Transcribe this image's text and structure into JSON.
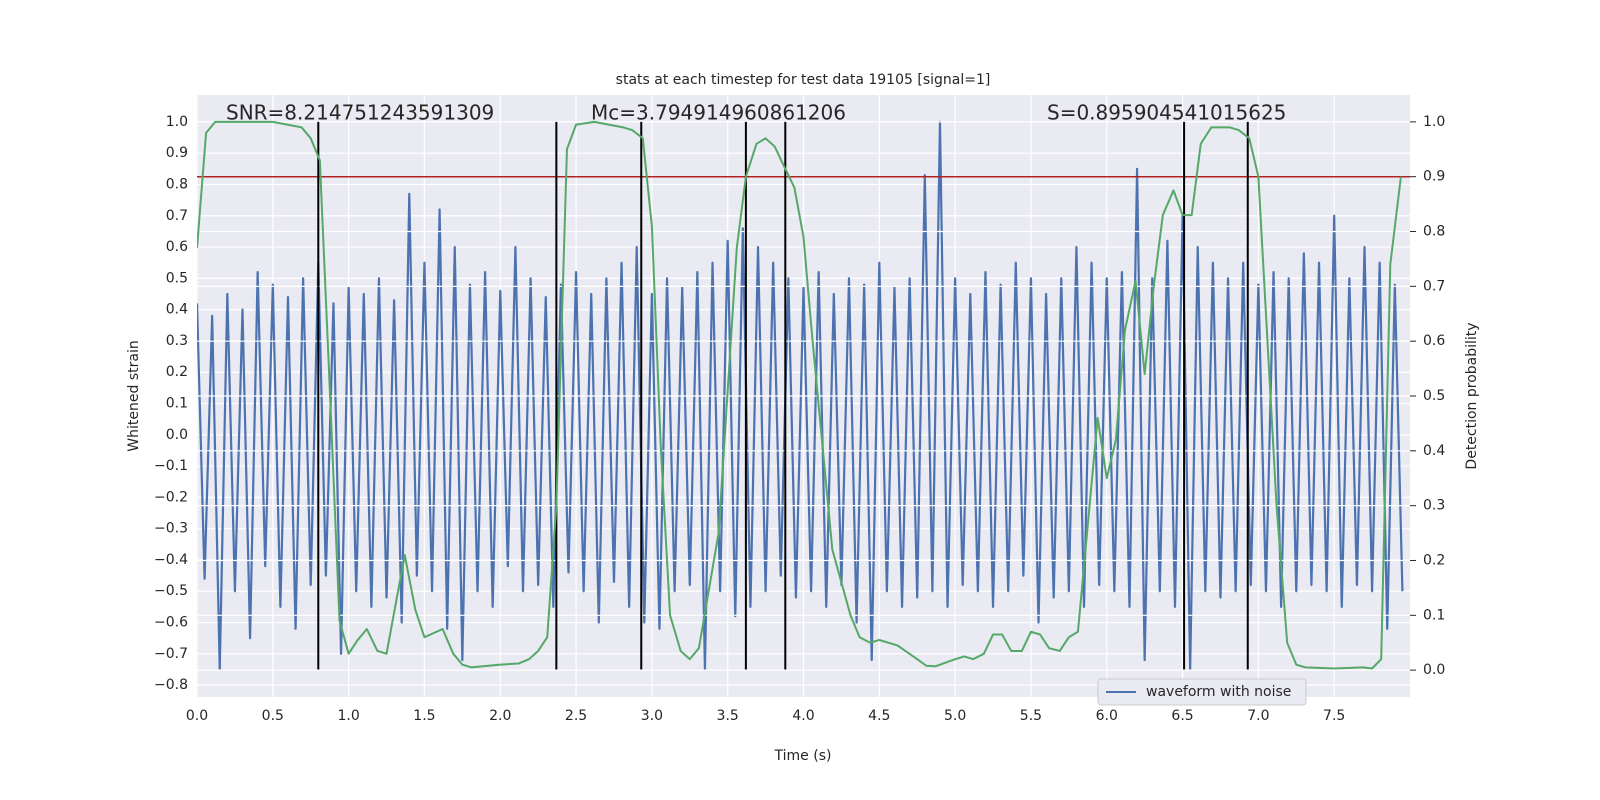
{
  "chart_data": {
    "type": "line",
    "title": "stats at each timestep for test data 19105 [signal=1]",
    "xlabel": "Time (s)",
    "ylabel": "Whitened strain",
    "y2label": "Detection probability",
    "annotations": [
      "SNR=8.214751243591309",
      "Mc=3.794914960861206",
      "S=0.895904541015625"
    ],
    "grid": true,
    "legend": "lower right",
    "xlim": [
      0,
      8
    ],
    "ylim": [
      -0.838,
      1.086
    ],
    "y2lim": [
      -0.049,
      1.049
    ],
    "xticks": [
      {
        "value": 0,
        "label": "0.0"
      },
      {
        "value": 0.5,
        "label": "0.5"
      },
      {
        "value": 1,
        "label": "1.0"
      },
      {
        "value": 1.5,
        "label": "1.5"
      },
      {
        "value": 2,
        "label": "2.0"
      },
      {
        "value": 2.5,
        "label": "2.5"
      },
      {
        "value": 3,
        "label": "3.0"
      },
      {
        "value": 3.5,
        "label": "3.5"
      },
      {
        "value": 4,
        "label": "4.0"
      },
      {
        "value": 4.5,
        "label": "4.5"
      },
      {
        "value": 5,
        "label": "5.0"
      },
      {
        "value": 5.5,
        "label": "5.5"
      },
      {
        "value": 6,
        "label": "6.0"
      },
      {
        "value": 6.5,
        "label": "6.5"
      },
      {
        "value": 7,
        "label": "7.0"
      },
      {
        "value": 7.5,
        "label": "7.5"
      }
    ],
    "yticks": [
      {
        "value": -0.8,
        "label": "−0.8"
      },
      {
        "value": -0.7,
        "label": "−0.7"
      },
      {
        "value": -0.6,
        "label": "−0.6"
      },
      {
        "value": -0.5,
        "label": "−0.5"
      },
      {
        "value": -0.4,
        "label": "−0.4"
      },
      {
        "value": -0.3,
        "label": "−0.3"
      },
      {
        "value": -0.2,
        "label": "−0.2"
      },
      {
        "value": -0.1,
        "label": "−0.1"
      },
      {
        "value": 0,
        "label": "0.0"
      },
      {
        "value": 0.1,
        "label": "0.1"
      },
      {
        "value": 0.2,
        "label": "0.2"
      },
      {
        "value": 0.3,
        "label": "0.3"
      },
      {
        "value": 0.4,
        "label": "0.4"
      },
      {
        "value": 0.5,
        "label": "0.5"
      },
      {
        "value": 0.6,
        "label": "0.6"
      },
      {
        "value": 0.7,
        "label": "0.7"
      },
      {
        "value": 0.8,
        "label": "0.8"
      },
      {
        "value": 0.9,
        "label": "0.9"
      },
      {
        "value": 1,
        "label": "1.0"
      }
    ],
    "y2ticks": [
      {
        "value": 0,
        "label": "0.0"
      },
      {
        "value": 0.1,
        "label": "0.1"
      },
      {
        "value": 0.2,
        "label": "0.2"
      },
      {
        "value": 0.3,
        "label": "0.3"
      },
      {
        "value": 0.4,
        "label": "0.4"
      },
      {
        "value": 0.5,
        "label": "0.5"
      },
      {
        "value": 0.6,
        "label": "0.6"
      },
      {
        "value": 0.7,
        "label": "0.7"
      },
      {
        "value": 0.8,
        "label": "0.8"
      },
      {
        "value": 0.9,
        "label": "0.9"
      },
      {
        "value": 1,
        "label": "1.0"
      }
    ],
    "series": [
      {
        "name": "waveform with noise",
        "color": "#4c72b0",
        "x": [
          0,
          0.05,
          0.1,
          0.15,
          0.2,
          0.25,
          0.3,
          0.35,
          0.4,
          0.45,
          0.5,
          0.55,
          0.6,
          0.65,
          0.7,
          0.75,
          0.8,
          0.85,
          0.9,
          0.95,
          1,
          1.05,
          1.1,
          1.15,
          1.2,
          1.25,
          1.3,
          1.35,
          1.4,
          1.45,
          1.5,
          1.55,
          1.6,
          1.65,
          1.7,
          1.75,
          1.8,
          1.85,
          1.9,
          1.95,
          2,
          2.05,
          2.1,
          2.15,
          2.2,
          2.25,
          2.3,
          2.35,
          2.4,
          2.45,
          2.5,
          2.55,
          2.6,
          2.65,
          2.7,
          2.75,
          2.8,
          2.85,
          2.9,
          2.95,
          3,
          3.05,
          3.1,
          3.15,
          3.2,
          3.25,
          3.3,
          3.35,
          3.4,
          3.45,
          3.5,
          3.55,
          3.6,
          3.65,
          3.7,
          3.75,
          3.8,
          3.85,
          3.9,
          3.95,
          4,
          4.05,
          4.1,
          4.15,
          4.2,
          4.25,
          4.3,
          4.35,
          4.4,
          4.45,
          4.5,
          4.55,
          4.6,
          4.65,
          4.7,
          4.75,
          4.8,
          4.85,
          4.9,
          4.95,
          5,
          5.05,
          5.1,
          5.15,
          5.2,
          5.25,
          5.3,
          5.35,
          5.4,
          5.45,
          5.5,
          5.55,
          5.6,
          5.65,
          5.7,
          5.75,
          5.8,
          5.85,
          5.9,
          5.95,
          6,
          6.05,
          6.1,
          6.15,
          6.2,
          6.25,
          6.3,
          6.35,
          6.4,
          6.45,
          6.5,
          6.55,
          6.6,
          6.65,
          6.7,
          6.75,
          6.8,
          6.85,
          6.9,
          6.95,
          7,
          7.05,
          7.1,
          7.15,
          7.2,
          7.25,
          7.3,
          7.35,
          7.4,
          7.45,
          7.5,
          7.55,
          7.6,
          7.65,
          7.7,
          7.75,
          7.8,
          7.85,
          7.9,
          7.95
        ],
        "values": [
          0.42,
          -0.46,
          0.38,
          -0.75,
          0.45,
          -0.5,
          0.4,
          -0.65,
          0.52,
          -0.42,
          0.48,
          -0.55,
          0.44,
          -0.62,
          0.5,
          -0.48,
          0.55,
          -0.45,
          0.42,
          -0.7,
          0.47,
          -0.5,
          0.45,
          -0.55,
          0.5,
          -0.52,
          0.43,
          -0.6,
          0.77,
          -0.45,
          0.55,
          -0.5,
          0.72,
          -0.62,
          0.6,
          -0.72,
          0.48,
          -0.5,
          0.52,
          -0.55,
          0.46,
          -0.42,
          0.6,
          -0.5,
          0.5,
          -0.48,
          0.44,
          -0.55,
          0.48,
          -0.44,
          0.52,
          -0.5,
          0.45,
          -0.6,
          0.5,
          -0.47,
          0.55,
          -0.55,
          0.6,
          -0.6,
          0.45,
          -0.62,
          0.5,
          -0.5,
          0.47,
          -0.48,
          0.52,
          -0.75,
          0.55,
          -0.5,
          0.62,
          -0.58,
          0.66,
          -0.55,
          0.6,
          -0.5,
          0.55,
          -0.45,
          0.5,
          -0.52,
          0.47,
          -0.5,
          0.52,
          -0.55,
          0.45,
          -0.48,
          0.5,
          -0.6,
          0.48,
          -0.72,
          0.55,
          -0.5,
          0.47,
          -0.55,
          0.5,
          -0.52,
          0.83,
          -0.5,
          1.0,
          -0.55,
          0.5,
          -0.48,
          0.45,
          -0.5,
          0.52,
          -0.55,
          0.48,
          -0.5,
          0.55,
          -0.45,
          0.5,
          -0.6,
          0.45,
          -0.52,
          0.5,
          -0.5,
          0.6,
          -0.55,
          0.55,
          -0.48,
          0.5,
          -0.5,
          0.52,
          -0.55,
          0.85,
          -0.72,
          0.5,
          -0.5,
          0.62,
          -0.55,
          0.7,
          -0.75,
          0.6,
          -0.5,
          0.55,
          -0.52,
          0.5,
          -0.5,
          0.55,
          -0.48,
          0.48,
          -0.5,
          0.52,
          -0.55,
          0.5,
          -0.5,
          0.58,
          -0.48,
          0.55,
          -0.5,
          0.7,
          -0.55,
          0.5,
          -0.48,
          0.6,
          -0.5,
          0.55,
          -0.62,
          0.48,
          -0.5
        ]
      }
    ],
    "probability": {
      "color": "#55a868",
      "axis": "y2",
      "x": [
        0,
        0.06,
        0.12,
        0.5,
        0.69,
        0.75,
        0.81,
        0.87,
        0.94,
        1,
        1.06,
        1.12,
        1.19,
        1.25,
        1.31,
        1.37,
        1.44,
        1.5,
        1.62,
        1.69,
        1.75,
        1.81,
        2,
        2.12,
        2.19,
        2.25,
        2.31,
        2.37,
        2.44,
        2.5,
        2.62,
        2.81,
        2.87,
        2.94,
        3,
        3.06,
        3.12,
        3.19,
        3.25,
        3.31,
        3.44,
        3.56,
        3.62,
        3.69,
        3.75,
        3.81,
        3.87,
        3.94,
        4,
        4.06,
        4.19,
        4.31,
        4.37,
        4.44,
        4.5,
        4.62,
        4.75,
        4.81,
        4.87,
        5,
        5.06,
        5.12,
        5.19,
        5.25,
        5.31,
        5.37,
        5.44,
        5.5,
        5.56,
        5.62,
        5.69,
        5.75,
        5.81,
        5.87,
        5.94,
        6,
        6.06,
        6.12,
        6.19,
        6.25,
        6.31,
        6.37,
        6.44,
        6.5,
        6.56,
        6.62,
        6.69,
        6.81,
        6.87,
        6.94,
        7,
        7.06,
        7.12,
        7.19,
        7.25,
        7.31,
        7.5,
        7.69,
        7.75,
        7.81,
        7.87,
        7.94
      ],
      "values": [
        0.77,
        0.98,
        1,
        1,
        0.99,
        0.97,
        0.93,
        0.55,
        0.09,
        0.03,
        0.055,
        0.075,
        0.035,
        0.03,
        0.12,
        0.21,
        0.11,
        0.06,
        0.075,
        0.03,
        0.01,
        0.005,
        0.01,
        0.012,
        0.02,
        0.035,
        0.06,
        0.3,
        0.95,
        0.995,
        1,
        0.99,
        0.985,
        0.97,
        0.81,
        0.4,
        0.1,
        0.035,
        0.02,
        0.04,
        0.25,
        0.77,
        0.9,
        0.96,
        0.97,
        0.955,
        0.92,
        0.88,
        0.79,
        0.6,
        0.22,
        0.1,
        0.06,
        0.05,
        0.055,
        0.045,
        0.02,
        0.008,
        0.007,
        0.02,
        0.025,
        0.02,
        0.03,
        0.065,
        0.065,
        0.035,
        0.035,
        0.07,
        0.065,
        0.04,
        0.035,
        0.06,
        0.07,
        0.25,
        0.46,
        0.35,
        0.42,
        0.62,
        0.71,
        0.54,
        0.7,
        0.83,
        0.875,
        0.83,
        0.83,
        0.96,
        0.99,
        0.99,
        0.985,
        0.97,
        0.9,
        0.6,
        0.3,
        0.05,
        0.01,
        0.005,
        0.003,
        0.005,
        0.003,
        0.02,
        0.74,
        0.9
      ]
    },
    "vlines": {
      "color": "#000000",
      "ymin": -0.75,
      "ymax": 1.0,
      "x": [
        0.8,
        2.37,
        2.93,
        3.62,
        3.88,
        6.51,
        6.93
      ]
    },
    "hline": {
      "color": "#b22222",
      "axis": "y2",
      "value": 0.9
    }
  }
}
